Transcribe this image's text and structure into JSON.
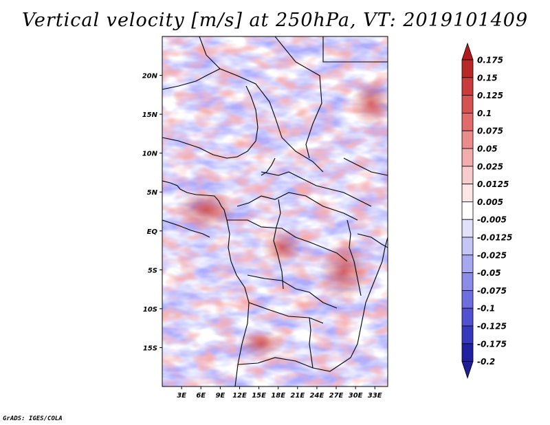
{
  "title": "Vertical velocity [m/s] at 250hPa, VT: 2019101409",
  "footer": "GrADS: IGES/COLA",
  "map": {
    "lon_range": [
      0,
      35
    ],
    "lat_range": [
      -20,
      25
    ],
    "lat_ticks": [
      {
        "value": 20,
        "label": "20N"
      },
      {
        "value": 15,
        "label": "15N"
      },
      {
        "value": 10,
        "label": "10N"
      },
      {
        "value": 5,
        "label": "5N"
      },
      {
        "value": 0,
        "label": "EQ"
      },
      {
        "value": -5,
        "label": "5S"
      },
      {
        "value": -10,
        "label": "10S"
      },
      {
        "value": -15,
        "label": "15S"
      }
    ],
    "lon_ticks": [
      {
        "value": 3,
        "label": "3E"
      },
      {
        "value": 6,
        "label": "6E"
      },
      {
        "value": 9,
        "label": "9E"
      },
      {
        "value": 12,
        "label": "12E"
      },
      {
        "value": 15,
        "label": "15E"
      },
      {
        "value": 18,
        "label": "18E"
      },
      {
        "value": 21,
        "label": "21E"
      },
      {
        "value": 24,
        "label": "24E"
      },
      {
        "value": 27,
        "label": "27E"
      },
      {
        "value": 30,
        "label": "30E"
      },
      {
        "value": 33,
        "label": "33E"
      }
    ]
  },
  "colorbar": {
    "levels": [
      {
        "label": "0.175",
        "color": "#a31a1a"
      },
      {
        "label": "0.15",
        "color": "#b82828"
      },
      {
        "label": "0.125",
        "color": "#c83c3c"
      },
      {
        "label": "0.1",
        "color": "#d55252"
      },
      {
        "label": "0.075",
        "color": "#e16c6c"
      },
      {
        "label": "0.05",
        "color": "#eb8c8c"
      },
      {
        "label": "0.025",
        "color": "#f3acac"
      },
      {
        "label": "0.0125",
        "color": "#f8cccc"
      },
      {
        "label": "0.005",
        "color": "#fce6e6"
      },
      {
        "label": "-0.005",
        "color": "#ffffff"
      },
      {
        "label": "-0.0125",
        "color": "#e2e2fb"
      },
      {
        "label": "-0.025",
        "color": "#c6c6f6"
      },
      {
        "label": "-0.05",
        "color": "#a8a8f0"
      },
      {
        "label": "-0.075",
        "color": "#8b8be8"
      },
      {
        "label": "-0.1",
        "color": "#6e6ede"
      },
      {
        "label": "-0.125",
        "color": "#5252d0"
      },
      {
        "label": "-0.175",
        "color": "#3838bc"
      },
      {
        "label": "-0.2",
        "color": "#2020a0"
      }
    ],
    "top_color": "#b01c1c",
    "bottom_color": "#1e1e96"
  }
}
